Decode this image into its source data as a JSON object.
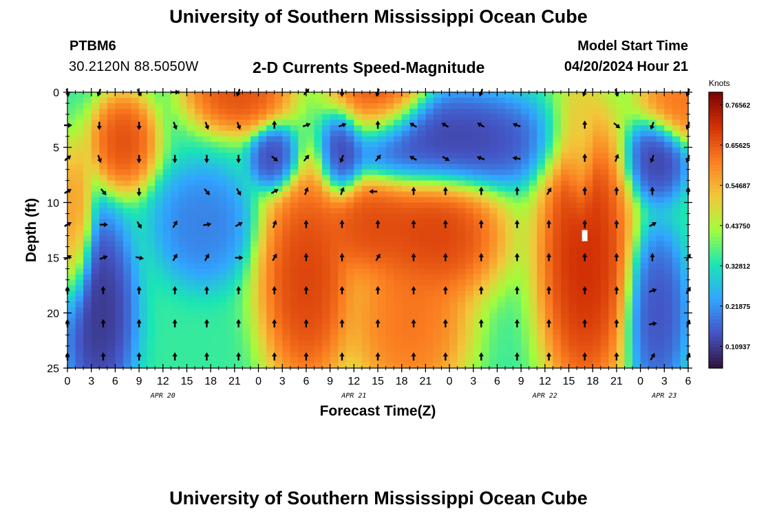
{
  "header": {
    "title": "University of Southern Mississippi Ocean Cube",
    "station_id": "PTBM6",
    "location": "30.2120N  88.5050W",
    "subtitle": "2-D Currents Speed-Magnitude",
    "model_start_label": "Model Start Time",
    "model_start_value": "04/20/2024 Hour 21"
  },
  "footer": {
    "title": "University of Southern Mississippi Ocean Cube"
  },
  "colors": {
    "scale": [
      "#30123b",
      "#4454c4",
      "#31a5ff",
      "#1be5b5",
      "#a4fc3c",
      "#f3c63a",
      "#fb7e21",
      "#d23105",
      "#7a0403"
    ],
    "arrow": "#000000",
    "marker": "#ffffff"
  },
  "chart_data": {
    "type": "heatmap",
    "title": "2-D Currents Speed-Magnitude",
    "xlabel": "Forecast Time(Z)",
    "ylabel": "Depth (ft)",
    "colorbar_label": "Knots",
    "xlim": [
      0,
      78
    ],
    "ylim": [
      0,
      25
    ],
    "yticks": [
      "0",
      "5",
      "10",
      "15",
      "20",
      "25"
    ],
    "xticks": [
      "0",
      "3",
      "6",
      "9",
      "12",
      "15",
      "18",
      "21",
      "0",
      "3",
      "6",
      "9",
      "12",
      "15",
      "18",
      "21",
      "0",
      "3",
      "6",
      "9",
      "12",
      "15",
      "18",
      "21",
      "0",
      "3",
      "6"
    ],
    "date_labels": [
      {
        "label": "APR 20",
        "hour": 12
      },
      {
        "label": "APR 21",
        "hour": 36
      },
      {
        "label": "APR 22",
        "hour": 60
      },
      {
        "label": "APR 23",
        "hour": 75
      }
    ],
    "colorbar": {
      "vmin": 0.05,
      "vmax": 0.8,
      "tick_values": [
        0.76562,
        0.65625,
        0.54687,
        0.4375,
        0.32812,
        0.21875,
        0.10937
      ],
      "tick_labels": [
        "0.76562",
        "0.65625",
        "0.54687",
        "0.43750",
        "0.32812",
        "0.21875",
        "0.10937"
      ]
    },
    "blobs": [
      {
        "t": 21.5,
        "d": 0,
        "rt": 4.5,
        "rd": 2.5,
        "v": 0.7
      },
      {
        "t": 39,
        "d": 0,
        "rt": 4,
        "rd": 3,
        "v": 0.7
      },
      {
        "t": 77,
        "d": 1,
        "rt": 3.5,
        "rd": 2.5,
        "v": 0.65
      },
      {
        "t": 1,
        "d": 12,
        "rt": 1.5,
        "rd": 5,
        "v": 0.6
      },
      {
        "t": 7,
        "d": 4.5,
        "rt": 2.8,
        "rd": 3,
        "v": 0.7
      },
      {
        "t": 26,
        "d": 6,
        "rt": 2,
        "rd": 2,
        "v": 0.1
      },
      {
        "t": 34.5,
        "d": 5.5,
        "rt": 1.7,
        "rd": 2.6,
        "v": 0.1
      },
      {
        "t": 48,
        "d": 4.5,
        "rt": 9,
        "rd": 3,
        "v": 0.1
      },
      {
        "t": 74,
        "d": 6,
        "rt": 2.5,
        "rd": 2.6,
        "v": 0.1
      },
      {
        "t": 4,
        "d": 20,
        "rt": 3,
        "rd": 6,
        "v": 0.08
      },
      {
        "t": 17,
        "d": 12,
        "rt": 4,
        "rd": 3.5,
        "v": 0.18
      },
      {
        "t": 74,
        "d": 20,
        "rt": 2.5,
        "rd": 5,
        "v": 0.12
      },
      {
        "t": 30,
        "d": 17,
        "rt": 4,
        "rd": 7,
        "v": 0.72
      },
      {
        "t": 38,
        "d": 12,
        "rt": 4,
        "rd": 3,
        "v": 0.7
      },
      {
        "t": 46,
        "d": 13,
        "rt": 6,
        "rd": 4,
        "v": 0.72
      },
      {
        "t": 43,
        "d": 21,
        "rt": 5,
        "rd": 5,
        "v": 0.65
      },
      {
        "t": 65,
        "d": 15,
        "rt": 4,
        "rd": 9,
        "v": 0.75
      },
      {
        "t": 64.5,
        "d": 4,
        "rt": 1.2,
        "rd": 5,
        "v": 0.5
      }
    ],
    "vectors": [
      {
        "t": 0,
        "d": 0,
        "dir": 165
      },
      {
        "t": 4,
        "d": 0,
        "dir": 200
      },
      {
        "t": 9,
        "d": 0,
        "dir": 150
      },
      {
        "t": 13.5,
        "d": 0,
        "dir": 90
      },
      {
        "t": 21.5,
        "d": 0,
        "dir": 200
      },
      {
        "t": 30,
        "d": 0,
        "dir": 40
      },
      {
        "t": 34.5,
        "d": 0,
        "dir": 180
      },
      {
        "t": 39,
        "d": 0,
        "dir": 200
      },
      {
        "t": 52,
        "d": 0,
        "dir": 200
      },
      {
        "t": 65,
        "d": 0,
        "dir": 200
      },
      {
        "t": 69,
        "d": 0,
        "dir": 160
      },
      {
        "t": 78,
        "d": 0,
        "dir": 200
      },
      {
        "t": 0,
        "d": 3,
        "dir": 90
      },
      {
        "t": 4,
        "d": 3,
        "dir": 180
      },
      {
        "t": 9,
        "d": 3,
        "dir": 180
      },
      {
        "t": 13.5,
        "d": 3,
        "dir": 160
      },
      {
        "t": 17.5,
        "d": 3,
        "dir": 160
      },
      {
        "t": 21.5,
        "d": 3,
        "dir": 160
      },
      {
        "t": 26,
        "d": 3,
        "dir": 0
      },
      {
        "t": 30,
        "d": 3,
        "dir": 70
      },
      {
        "t": 34.5,
        "d": 3,
        "dir": 70
      },
      {
        "t": 39,
        "d": 3,
        "dir": 0
      },
      {
        "t": 43.5,
        "d": 3,
        "dir": 300
      },
      {
        "t": 47.5,
        "d": 3,
        "dir": 300
      },
      {
        "t": 52,
        "d": 3,
        "dir": 300
      },
      {
        "t": 56.5,
        "d": 3,
        "dir": 290
      },
      {
        "t": 65,
        "d": 3,
        "dir": 0
      },
      {
        "t": 69,
        "d": 3,
        "dir": 130
      },
      {
        "t": 73.5,
        "d": 3,
        "dir": 200
      },
      {
        "t": 78,
        "d": 3,
        "dir": 200
      },
      {
        "t": 0,
        "d": 6,
        "dir": 50
      },
      {
        "t": 4,
        "d": 6,
        "dir": 160
      },
      {
        "t": 9,
        "d": 6,
        "dir": 180
      },
      {
        "t": 13.5,
        "d": 6,
        "dir": 180
      },
      {
        "t": 17.5,
        "d": 6,
        "dir": 180
      },
      {
        "t": 21.5,
        "d": 6,
        "dir": 180
      },
      {
        "t": 26,
        "d": 6,
        "dir": 130
      },
      {
        "t": 30,
        "d": 6,
        "dir": 40
      },
      {
        "t": 34.5,
        "d": 6,
        "dir": 200
      },
      {
        "t": 39,
        "d": 6,
        "dir": 40
      },
      {
        "t": 43.5,
        "d": 6,
        "dir": 300
      },
      {
        "t": 47.5,
        "d": 6,
        "dir": 120
      },
      {
        "t": 52,
        "d": 6,
        "dir": 290
      },
      {
        "t": 56.5,
        "d": 6,
        "dir": 280
      },
      {
        "t": 65,
        "d": 6,
        "dir": 0
      },
      {
        "t": 69,
        "d": 6,
        "dir": 20
      },
      {
        "t": 73.5,
        "d": 6,
        "dir": 200
      },
      {
        "t": 78,
        "d": 6,
        "dir": 200
      },
      {
        "t": 0,
        "d": 9,
        "dir": 60
      },
      {
        "t": 4.5,
        "d": 9,
        "dir": 140
      },
      {
        "t": 9,
        "d": 9,
        "dir": 180
      },
      {
        "t": 17.5,
        "d": 9,
        "dir": 140
      },
      {
        "t": 21.5,
        "d": 9,
        "dir": 150
      },
      {
        "t": 26,
        "d": 9,
        "dir": 60
      },
      {
        "t": 30,
        "d": 9,
        "dir": 20
      },
      {
        "t": 34.5,
        "d": 9,
        "dir": 20
      },
      {
        "t": 38.5,
        "d": 9,
        "dir": 270
      },
      {
        "t": 43.5,
        "d": 9,
        "dir": 0
      },
      {
        "t": 47.5,
        "d": 9,
        "dir": 0
      },
      {
        "t": 52,
        "d": 9,
        "dir": 0
      },
      {
        "t": 56.5,
        "d": 9,
        "dir": 0
      },
      {
        "t": 60.5,
        "d": 9,
        "dir": 30
      },
      {
        "t": 65,
        "d": 9,
        "dir": 0
      },
      {
        "t": 69,
        "d": 9,
        "dir": 0
      },
      {
        "t": 73.5,
        "d": 9,
        "dir": 0
      },
      {
        "t": 78,
        "d": 9,
        "dir": 0
      },
      {
        "t": 0,
        "d": 12,
        "dir": 60
      },
      {
        "t": 4.5,
        "d": 12,
        "dir": 90
      },
      {
        "t": 9,
        "d": 12,
        "dir": 150
      },
      {
        "t": 13.5,
        "d": 12,
        "dir": 30
      },
      {
        "t": 17.5,
        "d": 12,
        "dir": 80
      },
      {
        "t": 21.5,
        "d": 12,
        "dir": 60
      },
      {
        "t": 26,
        "d": 12,
        "dir": 20
      },
      {
        "t": 30,
        "d": 12,
        "dir": 0
      },
      {
        "t": 34.5,
        "d": 12,
        "dir": 0
      },
      {
        "t": 39,
        "d": 12,
        "dir": 0
      },
      {
        "t": 43.5,
        "d": 12,
        "dir": 0
      },
      {
        "t": 47.5,
        "d": 12,
        "dir": 0
      },
      {
        "t": 52,
        "d": 12,
        "dir": 0
      },
      {
        "t": 56.5,
        "d": 12,
        "dir": 0
      },
      {
        "t": 60.5,
        "d": 12,
        "dir": 0
      },
      {
        "t": 65,
        "d": 12,
        "dir": 0
      },
      {
        "t": 69,
        "d": 12,
        "dir": 0
      },
      {
        "t": 73.5,
        "d": 12,
        "dir": 60
      },
      {
        "t": 0,
        "d": 15,
        "dir": 60
      },
      {
        "t": 4.5,
        "d": 15,
        "dir": 70
      },
      {
        "t": 9,
        "d": 15,
        "dir": 100
      },
      {
        "t": 13.5,
        "d": 15,
        "dir": 30
      },
      {
        "t": 17.5,
        "d": 15,
        "dir": 30
      },
      {
        "t": 21.5,
        "d": 15,
        "dir": 90
      },
      {
        "t": 26,
        "d": 15,
        "dir": 30
      },
      {
        "t": 30,
        "d": 15,
        "dir": 0
      },
      {
        "t": 34.5,
        "d": 15,
        "dir": 0
      },
      {
        "t": 39,
        "d": 15,
        "dir": 30
      },
      {
        "t": 43.5,
        "d": 15,
        "dir": 0
      },
      {
        "t": 47.5,
        "d": 15,
        "dir": 0
      },
      {
        "t": 52,
        "d": 15,
        "dir": 0
      },
      {
        "t": 56.5,
        "d": 15,
        "dir": 0
      },
      {
        "t": 60.5,
        "d": 15,
        "dir": 0
      },
      {
        "t": 65,
        "d": 15,
        "dir": 0
      },
      {
        "t": 69,
        "d": 15,
        "dir": 0
      },
      {
        "t": 73.5,
        "d": 15,
        "dir": 0
      },
      {
        "t": 78,
        "d": 15,
        "dir": 30
      },
      {
        "t": 0,
        "d": 18,
        "dir": 0
      },
      {
        "t": 4.5,
        "d": 18,
        "dir": 0
      },
      {
        "t": 9,
        "d": 18,
        "dir": 0
      },
      {
        "t": 13.5,
        "d": 18,
        "dir": 0
      },
      {
        "t": 17.5,
        "d": 18,
        "dir": 0
      },
      {
        "t": 21.5,
        "d": 18,
        "dir": 0
      },
      {
        "t": 26,
        "d": 18,
        "dir": 0
      },
      {
        "t": 30,
        "d": 18,
        "dir": 0
      },
      {
        "t": 34.5,
        "d": 18,
        "dir": 0
      },
      {
        "t": 39,
        "d": 18,
        "dir": 0
      },
      {
        "t": 43.5,
        "d": 18,
        "dir": 0
      },
      {
        "t": 47.5,
        "d": 18,
        "dir": 0
      },
      {
        "t": 52,
        "d": 18,
        "dir": 0
      },
      {
        "t": 56.5,
        "d": 18,
        "dir": 0
      },
      {
        "t": 60.5,
        "d": 18,
        "dir": 0
      },
      {
        "t": 65,
        "d": 18,
        "dir": 0
      },
      {
        "t": 69,
        "d": 18,
        "dir": 0
      },
      {
        "t": 73.5,
        "d": 18,
        "dir": 70
      },
      {
        "t": 78,
        "d": 18,
        "dir": 30
      },
      {
        "t": 0,
        "d": 21,
        "dir": 0
      },
      {
        "t": 4.5,
        "d": 21,
        "dir": 0
      },
      {
        "t": 9,
        "d": 21,
        "dir": 0
      },
      {
        "t": 13.5,
        "d": 21,
        "dir": 0
      },
      {
        "t": 17.5,
        "d": 21,
        "dir": 0
      },
      {
        "t": 21.5,
        "d": 21,
        "dir": 0
      },
      {
        "t": 26,
        "d": 21,
        "dir": 0
      },
      {
        "t": 30,
        "d": 21,
        "dir": 0
      },
      {
        "t": 34.5,
        "d": 21,
        "dir": 0
      },
      {
        "t": 39,
        "d": 21,
        "dir": 0
      },
      {
        "t": 43.5,
        "d": 21,
        "dir": 0
      },
      {
        "t": 47.5,
        "d": 21,
        "dir": 0
      },
      {
        "t": 52,
        "d": 21,
        "dir": 0
      },
      {
        "t": 56.5,
        "d": 21,
        "dir": 0
      },
      {
        "t": 60.5,
        "d": 21,
        "dir": 0
      },
      {
        "t": 65,
        "d": 21,
        "dir": 0
      },
      {
        "t": 69,
        "d": 21,
        "dir": 0
      },
      {
        "t": 73.5,
        "d": 21,
        "dir": 80
      },
      {
        "t": 78,
        "d": 21,
        "dir": 20
      },
      {
        "t": 0,
        "d": 24,
        "dir": 0
      },
      {
        "t": 4.5,
        "d": 24,
        "dir": 0
      },
      {
        "t": 9,
        "d": 24,
        "dir": 0
      },
      {
        "t": 13.5,
        "d": 24,
        "dir": 0
      },
      {
        "t": 17.5,
        "d": 24,
        "dir": 0
      },
      {
        "t": 21.5,
        "d": 24,
        "dir": 0
      },
      {
        "t": 26,
        "d": 24,
        "dir": 0
      },
      {
        "t": 30,
        "d": 24,
        "dir": 0
      },
      {
        "t": 34.5,
        "d": 24,
        "dir": 0
      },
      {
        "t": 39,
        "d": 24,
        "dir": 0
      },
      {
        "t": 43.5,
        "d": 24,
        "dir": 0
      },
      {
        "t": 47.5,
        "d": 24,
        "dir": 0
      },
      {
        "t": 52,
        "d": 24,
        "dir": 0
      },
      {
        "t": 56.5,
        "d": 24,
        "dir": 0
      },
      {
        "t": 60.5,
        "d": 24,
        "dir": 0
      },
      {
        "t": 65,
        "d": 24,
        "dir": 0
      },
      {
        "t": 69,
        "d": 24,
        "dir": 0
      },
      {
        "t": 73.5,
        "d": 24,
        "dir": 30
      },
      {
        "t": 78,
        "d": 24,
        "dir": 20
      }
    ],
    "marker": {
      "t": 65,
      "d": 13
    }
  }
}
